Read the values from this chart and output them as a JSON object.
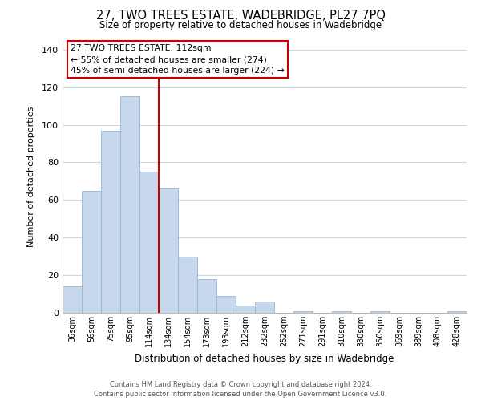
{
  "title": "27, TWO TREES ESTATE, WADEBRIDGE, PL27 7PQ",
  "subtitle": "Size of property relative to detached houses in Wadebridge",
  "xlabel": "Distribution of detached houses by size in Wadebridge",
  "ylabel": "Number of detached properties",
  "bar_labels": [
    "36sqm",
    "56sqm",
    "75sqm",
    "95sqm",
    "114sqm",
    "134sqm",
    "154sqm",
    "173sqm",
    "193sqm",
    "212sqm",
    "232sqm",
    "252sqm",
    "271sqm",
    "291sqm",
    "310sqm",
    "330sqm",
    "350sqm",
    "369sqm",
    "389sqm",
    "408sqm",
    "428sqm"
  ],
  "bar_heights": [
    14,
    65,
    97,
    115,
    75,
    66,
    30,
    18,
    9,
    4,
    6,
    0,
    1,
    0,
    1,
    0,
    1,
    0,
    0,
    0,
    1
  ],
  "bar_color": "#c8d8ec",
  "bar_edge_color": "#9ab4d0",
  "vline_x_idx": 4,
  "vline_color": "#cc0000",
  "ylim": [
    0,
    145
  ],
  "yticks": [
    0,
    20,
    40,
    60,
    80,
    100,
    120,
    140
  ],
  "annotation_title": "27 TWO TREES ESTATE: 112sqm",
  "annotation_line1": "← 55% of detached houses are smaller (274)",
  "annotation_line2": "45% of semi-detached houses are larger (224) →",
  "annotation_box_color": "#ffffff",
  "annotation_box_edge": "#cc0000",
  "footer_line1": "Contains HM Land Registry data © Crown copyright and database right 2024.",
  "footer_line2": "Contains public sector information licensed under the Open Government Licence v3.0.",
  "background_color": "#ffffff",
  "grid_color": "#c8d8e8"
}
